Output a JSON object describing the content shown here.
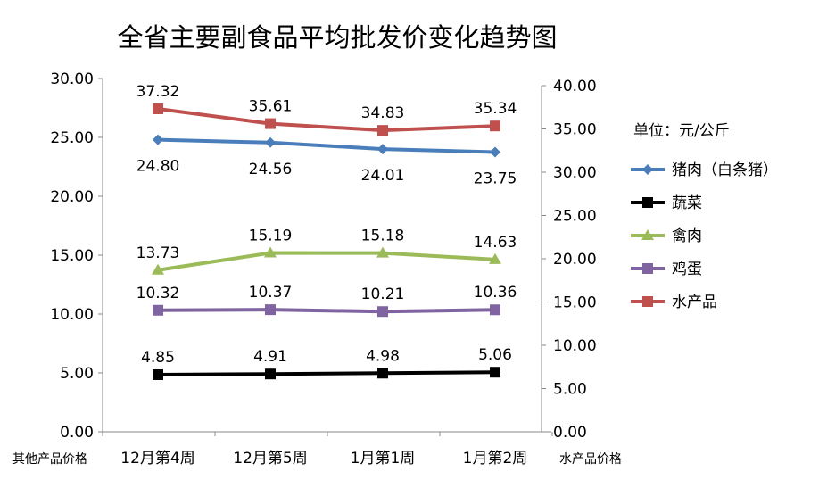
{
  "chart_data": {
    "type": "line",
    "title": "全省主要副食品平均批发价变化趋势图",
    "unit_label": "单位：元/公斤",
    "left_axis_label": "其他产品价格",
    "right_axis_label": "水产品价格",
    "categories": [
      "12月第4周",
      "12月第5周",
      "1月第1周",
      "1月第2周"
    ],
    "left_ylim": [
      0,
      30
    ],
    "left_ticks": [
      "0.00",
      "5.00",
      "10.00",
      "15.00",
      "20.00",
      "25.00",
      "30.00"
    ],
    "right_ylim": [
      0,
      40
    ],
    "right_ticks": [
      "0.00",
      "5.00",
      "10.00",
      "15.00",
      "20.00",
      "25.00",
      "30.00",
      "35.00",
      "40.00"
    ],
    "grid": false,
    "legend_position": "right",
    "series": [
      {
        "name": "猪肉（白条猪）",
        "axis": "left",
        "color": "#4a7ebb",
        "marker": "diamond",
        "label_pos": "below",
        "values": [
          24.8,
          24.56,
          24.01,
          23.75
        ],
        "labels": [
          "24.80",
          "24.56",
          "24.01",
          "23.75"
        ]
      },
      {
        "name": "蔬菜",
        "axis": "left",
        "color": "#000000",
        "marker": "square",
        "label_pos": "above",
        "values": [
          4.85,
          4.91,
          4.98,
          5.06
        ],
        "labels": [
          "4.85",
          "4.91",
          "4.98",
          "5.06"
        ]
      },
      {
        "name": "禽肉",
        "axis": "left",
        "color": "#9bbb59",
        "marker": "triangle",
        "label_pos": "above",
        "values": [
          13.73,
          15.19,
          15.18,
          14.63
        ],
        "labels": [
          "13.73",
          "15.19",
          "15.18",
          "14.63"
        ]
      },
      {
        "name": "鸡蛋",
        "axis": "left",
        "color": "#8064a2",
        "marker": "square",
        "label_pos": "above",
        "values": [
          10.32,
          10.37,
          10.21,
          10.36
        ],
        "labels": [
          "10.32",
          "10.37",
          "10.21",
          "10.36"
        ]
      },
      {
        "name": "水产品",
        "axis": "right",
        "color": "#c0504d",
        "marker": "square",
        "label_pos": "above",
        "values": [
          37.32,
          35.61,
          34.83,
          35.34
        ],
        "labels": [
          "37.32",
          "35.61",
          "34.83",
          "35.34"
        ]
      }
    ]
  }
}
